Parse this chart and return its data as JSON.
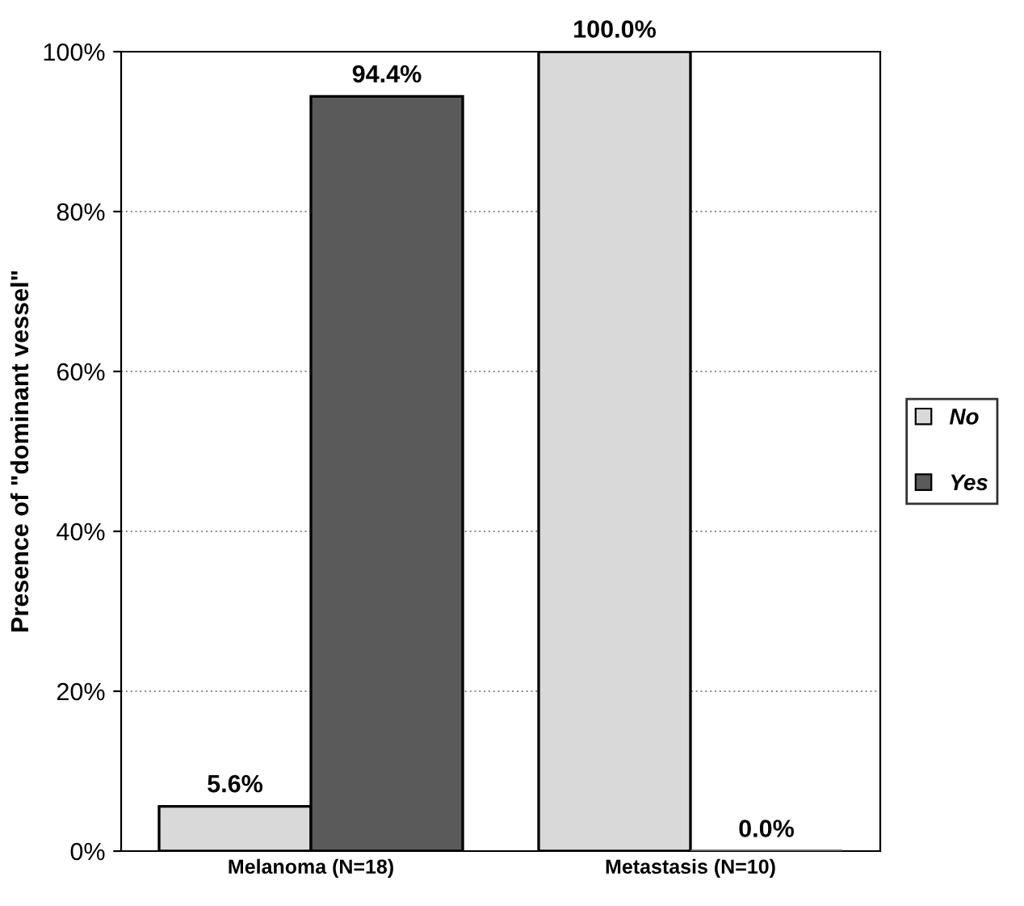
{
  "chart_data": {
    "type": "bar",
    "ylabel": "Presence of \"dominant vessel\"",
    "categories": [
      "Melanoma (N=18)",
      "Metastasis (N=10)"
    ],
    "series": [
      {
        "name": "No",
        "color": "#d9d9d9",
        "values": [
          5.6,
          100.0
        ],
        "value_labels": [
          "5.6%",
          "100.0%"
        ]
      },
      {
        "name": "Yes",
        "color": "#5a5a5a",
        "values": [
          94.4,
          0.0
        ],
        "value_labels": [
          "94.4%",
          "0.0%"
        ]
      }
    ],
    "ylim": [
      0,
      100
    ],
    "yticks": [
      {
        "value": 0,
        "label": "0%"
      },
      {
        "value": 20,
        "label": "20%"
      },
      {
        "value": 40,
        "label": "40%"
      },
      {
        "value": 60,
        "label": "60%"
      },
      {
        "value": 80,
        "label": "80%"
      },
      {
        "value": 100,
        "label": "100%"
      }
    ],
    "grid": "y",
    "legend": "right"
  }
}
